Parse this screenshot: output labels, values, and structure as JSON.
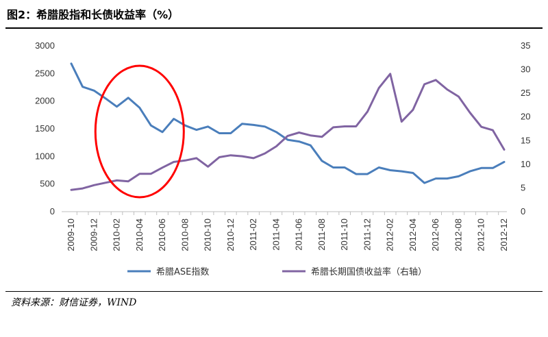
{
  "figure": {
    "title": "图2：希腊股指和长债收益率（%）",
    "source": "资料来源：财信证券，WIND"
  },
  "chart_data": {
    "type": "line",
    "title": "图2：希腊股指和长债收益率（%）",
    "x": [
      "2009-10",
      "2009-11",
      "2009-12",
      "2010-01",
      "2010-02",
      "2010-03",
      "2010-04",
      "2010-05",
      "2010-06",
      "2010-07",
      "2010-08",
      "2010-09",
      "2010-10",
      "2010-11",
      "2010-12",
      "2011-01",
      "2011-02",
      "2011-03",
      "2011-04",
      "2011-05",
      "2011-06",
      "2011-07",
      "2011-08",
      "2011-09",
      "2011-10",
      "2011-11",
      "2011-12",
      "2012-01",
      "2012-02",
      "2012-03",
      "2012-04",
      "2012-05",
      "2012-06",
      "2012-07",
      "2012-08",
      "2012-09",
      "2012-10",
      "2012-11",
      "2012-12"
    ],
    "xticks": [
      "2009-10",
      "2009-12",
      "2010-02",
      "2010-04",
      "2010-06",
      "2010-08",
      "2010-10",
      "2010-12",
      "2011-02",
      "2011-04",
      "2011-06",
      "2011-08",
      "2011-10",
      "2011-12",
      "2012-02",
      "2012-04",
      "2012-06",
      "2012-08",
      "2012-10",
      "2012-12"
    ],
    "y_left": {
      "range": [
        0,
        3000
      ],
      "ticks": [
        "0",
        "500",
        "1000",
        "1500",
        "2000",
        "2500",
        "3000"
      ]
    },
    "y_right": {
      "range": [
        0,
        35
      ],
      "ticks": [
        "0",
        "5",
        "10",
        "15",
        "20",
        "25",
        "30",
        "35"
      ]
    },
    "series": [
      {
        "name": "希腊ASE指数",
        "axis": "left",
        "color": "#4a7ebb",
        "values": [
          2680,
          2260,
          2190,
          2050,
          1900,
          2060,
          1880,
          1560,
          1440,
          1680,
          1560,
          1480,
          1540,
          1420,
          1420,
          1590,
          1570,
          1540,
          1440,
          1300,
          1270,
          1200,
          920,
          800,
          800,
          680,
          680,
          800,
          750,
          730,
          700,
          520,
          600,
          600,
          640,
          730,
          790,
          790,
          900
        ]
      },
      {
        "name": "希腊长期国债收益率（右轴）",
        "axis": "right",
        "color": "#8064a2",
        "values": [
          4.6,
          4.9,
          5.6,
          6.1,
          6.6,
          6.4,
          8.0,
          8.0,
          9.3,
          10.5,
          10.8,
          11.3,
          9.5,
          11.5,
          11.9,
          11.7,
          11.3,
          12.3,
          13.8,
          16.0,
          16.7,
          16.1,
          15.8,
          17.8,
          18.0,
          18.0,
          21.1,
          26.1,
          29.1,
          19.0,
          21.5,
          26.9,
          27.8,
          25.8,
          24.3,
          20.9,
          17.9,
          17.2,
          13.1
        ]
      }
    ],
    "annotation": {
      "shape": "ellipse",
      "color": "#ff0000",
      "x_from": "2009-12",
      "x_to": "2010-08"
    },
    "legend": "bottom",
    "grid": false
  }
}
